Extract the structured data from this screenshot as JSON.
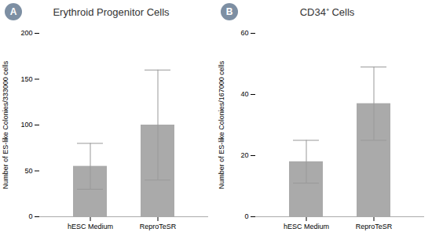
{
  "chart_data": [
    {
      "type": "bar",
      "title": "Erythroid Progenitor Cells",
      "annotations": [
        "A"
      ],
      "ylabel": "Number of ES-like Colonies/333000 cells",
      "categories": [
        "hESC Medium",
        "ReproTeSR"
      ],
      "values": [
        55,
        100
      ],
      "errors_upper": [
        25,
        60
      ],
      "errors_lower": [
        25,
        60
      ],
      "ylim": [
        0,
        200
      ],
      "yticks": [
        0,
        50,
        100,
        150,
        200
      ],
      "color": "#aaaaaa",
      "grid": false
    },
    {
      "type": "bar",
      "title": "CD34⁺ Cells",
      "annotations": [
        "B"
      ],
      "ylabel": "Number of ES-like Colonies/167000 cells",
      "categories": [
        "hESC Medium",
        "ReproTeSR"
      ],
      "values": [
        18,
        37
      ],
      "errors_upper": [
        7,
        12
      ],
      "errors_lower": [
        7,
        12
      ],
      "ylim": [
        0,
        60
      ],
      "yticks": [
        0,
        20,
        40,
        60
      ],
      "color": "#aaaaaa",
      "grid": false
    }
  ]
}
